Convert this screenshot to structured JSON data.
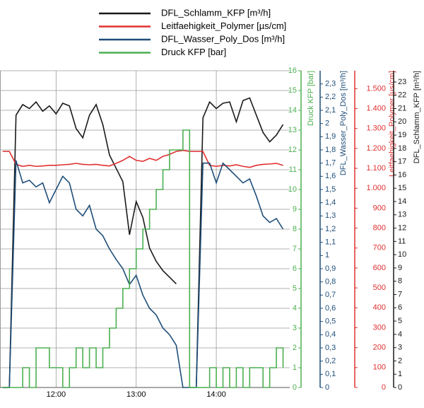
{
  "chart_data": {
    "type": "line",
    "x": [
      "11:20",
      "11:25",
      "11:30",
      "11:35",
      "11:40",
      "11:45",
      "11:50",
      "11:55",
      "12:00",
      "12:05",
      "12:10",
      "12:15",
      "12:20",
      "12:25",
      "12:30",
      "12:35",
      "12:40",
      "12:45",
      "12:50",
      "12:55",
      "13:00",
      "13:05",
      "13:10",
      "13:15",
      "13:20",
      "13:25",
      "13:30",
      "13:35",
      "13:40",
      "13:45",
      "13:50",
      "13:55",
      "14:00",
      "14:05",
      "14:10",
      "14:15",
      "14:20",
      "14:25",
      "14:30",
      "14:35",
      "14:40",
      "14:45",
      "14:50"
    ],
    "xlim": [
      "11:18",
      "14:55"
    ],
    "xticks": [
      "12:00",
      "13:00",
      "14:00"
    ],
    "grid": true,
    "series": [
      {
        "name": "DFL_Schlamm_KFP [m³/h]",
        "color": "#1a1a1a",
        "ylim": [
          0,
          23.85
        ],
        "yticks": [
          0,
          1,
          2,
          3,
          4,
          5,
          6,
          7,
          8,
          9,
          10,
          11,
          12,
          13,
          14,
          15,
          16,
          17,
          18,
          19,
          20,
          21,
          22,
          23
        ],
        "values": [
          0,
          0,
          20.5,
          21.3,
          21.0,
          21.5,
          20.8,
          21.2,
          20.6,
          21.4,
          21.2,
          19.5,
          18.8,
          20.5,
          21.3,
          19.8,
          17.5,
          16.5,
          15.5,
          11.5,
          14.0,
          12.8,
          10.5,
          9.5,
          8.8,
          8.3,
          7.8,
          null,
          null,
          0,
          20.3,
          21.5,
          21.0,
          21.4,
          21.5,
          20.0,
          21.6,
          21.8,
          20.5,
          19.2,
          18.5,
          19.0,
          19.8
        ]
      },
      {
        "name": "Leitfaehigkeit_Polymer [µs/cm]",
        "color": "#e03030",
        "ylim": [
          0,
          1590
        ],
        "yticks": [
          0,
          100,
          200,
          300,
          400,
          500,
          600,
          700,
          800,
          900,
          {
            "value": 1000,
            "label": "1.000"
          },
          {
            "value": 1100,
            "label": "1.100"
          },
          {
            "value": 1200,
            "label": "1.200"
          },
          {
            "value": 1300,
            "label": "1.300"
          },
          {
            "value": 1400,
            "label": "1.400"
          },
          {
            "value": 1500,
            "label": "1.500"
          }
        ],
        "values": [
          1185,
          1185,
          1120,
          1110,
          1115,
          1110,
          1112,
          1115,
          1115,
          1118,
          1120,
          1125,
          1120,
          1118,
          1120,
          1115,
          1112,
          1125,
          1140,
          1160,
          1140,
          1135,
          1150,
          1140,
          1160,
          1170,
          1185,
          1190,
          1185,
          1185,
          1185,
          1115,
          1110,
          1115,
          1112,
          1118,
          1110,
          1105,
          1115,
          1120,
          1122,
          1125,
          1115
        ]
      },
      {
        "name": "DFL_Wasser_Poly_Dos [m³/h]",
        "color": "#1f4e79",
        "ylim": [
          0,
          2.4
        ],
        "yticks": [
          0,
          {
            "value": 0.1,
            "label": "0,1"
          },
          {
            "value": 0.2,
            "label": "0,2"
          },
          {
            "value": 0.3,
            "label": "0,3"
          },
          {
            "value": 0.4,
            "label": "0,4"
          },
          {
            "value": 0.5,
            "label": "0,5"
          },
          {
            "value": 0.6,
            "label": "0,6"
          },
          {
            "value": 0.7,
            "label": "0,7"
          },
          {
            "value": 0.8,
            "label": "0,8"
          },
          {
            "value": 0.9,
            "label": "0,9"
          },
          {
            "value": 1,
            "label": "1"
          },
          {
            "value": 1.1,
            "label": "1,1"
          },
          {
            "value": 1.2,
            "label": "1,2"
          },
          {
            "value": 1.3,
            "label": "1,3"
          },
          {
            "value": 1.4,
            "label": "1,4"
          },
          {
            "value": 1.5,
            "label": "1,5"
          },
          {
            "value": 1.6,
            "label": "1,6"
          },
          {
            "value": 1.7,
            "label": "1,7"
          },
          {
            "value": 1.8,
            "label": "1,8"
          },
          {
            "value": 1.9,
            "label": "1,9"
          },
          {
            "value": 2,
            "label": "2"
          },
          {
            "value": 2.1,
            "label": "2,1"
          },
          {
            "value": 2.2,
            "label": "2,2"
          },
          {
            "value": 2.3,
            "label": "2,3"
          }
        ],
        "values": [
          0,
          0,
          1.72,
          1.55,
          1.57,
          1.52,
          1.55,
          1.4,
          1.5,
          1.6,
          1.55,
          1.35,
          1.3,
          1.38,
          1.2,
          1.15,
          1.05,
          0.97,
          0.9,
          0.78,
          0.85,
          0.7,
          0.6,
          0.55,
          0.45,
          0.4,
          0.32,
          0,
          0,
          0,
          1.7,
          1.7,
          1.55,
          1.7,
          1.65,
          1.6,
          1.55,
          1.58,
          1.45,
          1.3,
          1.25,
          1.28,
          1.2
        ]
      },
      {
        "name": "Druck KFP [bar]",
        "color": "#4caf50",
        "step": true,
        "ylim": [
          0,
          16
        ],
        "yticks": [
          0,
          1,
          2,
          3,
          4,
          5,
          6,
          7,
          8,
          9,
          10,
          11,
          12,
          13,
          14,
          15,
          16
        ],
        "values": [
          0,
          0,
          0,
          1,
          0,
          2,
          2,
          1,
          1,
          0,
          1,
          2,
          1,
          2,
          1,
          2,
          3,
          4,
          5,
          6,
          7,
          8,
          9,
          10,
          11,
          12,
          12,
          13,
          0,
          0,
          0,
          1,
          0,
          1,
          0,
          1,
          0,
          1,
          1,
          0,
          1,
          2,
          1
        ]
      }
    ]
  }
}
